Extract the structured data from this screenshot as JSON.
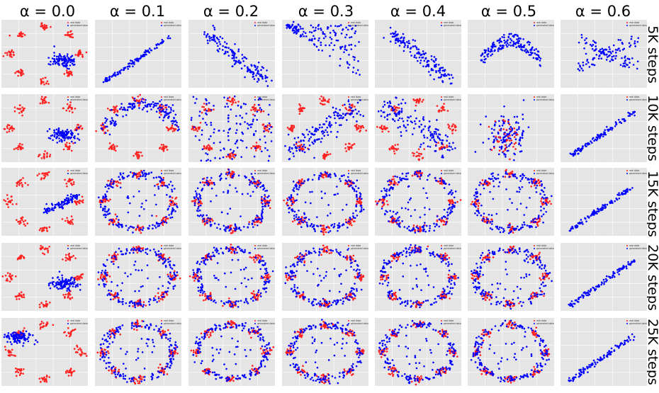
{
  "columns": [
    "α = 0.0",
    "α = 0.1",
    "α = 0.2",
    "α = 0.3",
    "α = 0.4",
    "α = 0.5",
    "α = 0.6"
  ],
  "rows": [
    "5K steps",
    "10K steps",
    "15K steps",
    "20K steps",
    "25K steps"
  ],
  "legend": {
    "real": "real data",
    "generated": "generated data"
  },
  "colors": {
    "real": "#ff2020",
    "generated": "#0000ff",
    "panel_bg": "#e5e5e5",
    "grid": "#ffffff"
  },
  "chart_data": {
    "type": "scatter",
    "layout": "grid 5 rows x 7 columns of small-multiple scatter plots",
    "series": [
      {
        "name": "real data",
        "description": "8 Gaussian clusters arranged on a ring",
        "color": "#ff2020"
      },
      {
        "name": "generated data",
        "color": "#0000ff"
      }
    ],
    "grid": true,
    "legend_position": "top-right",
    "panels": [
      [
        "pattern:real-only-ring-with-small-blue-blob",
        "pattern:thin-diagonal-line",
        "pattern:diagonal-band",
        "pattern:fan-from-top-left",
        "pattern:diagonal-band",
        "pattern:upper-arc",
        "pattern:x-shape"
      ],
      [
        "pattern:real-ring-with-blue-blob",
        "pattern:scattered-arc",
        "pattern:scattered-spread",
        "pattern:scattered-diagonal",
        "pattern:scattered-descending",
        "pattern:clustered-center",
        "pattern:thin-diagonal-line"
      ],
      [
        "pattern:real-ring-with-blue-streak",
        "pattern:ring-fit",
        "pattern:ring-fit",
        "pattern:ring-fit",
        "pattern:ring-fit",
        "pattern:ring-fit",
        "pattern:thin-diagonal-line"
      ],
      [
        "pattern:real-ring-with-blue-blob",
        "pattern:ring-fit",
        "pattern:ring-fit",
        "pattern:ring-fit",
        "pattern:ring-fit",
        "pattern:ring-fit",
        "pattern:thin-diagonal-line"
      ],
      [
        "pattern:real-ring-with-blue-blob-left",
        "pattern:ring-fit",
        "pattern:ring-fit",
        "pattern:ring-fit",
        "pattern:ring-fit",
        "pattern:ring-fit",
        "pattern:thin-diagonal-line"
      ]
    ]
  }
}
